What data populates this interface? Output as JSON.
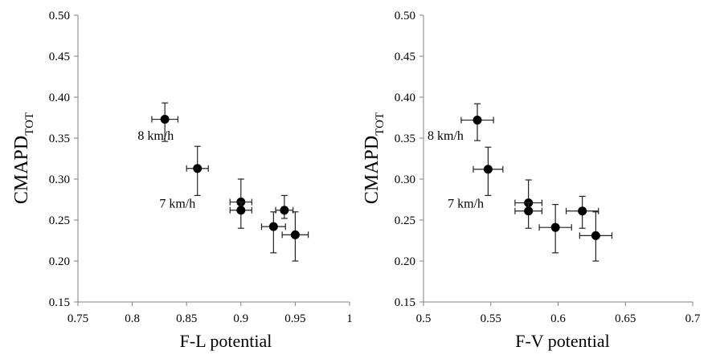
{
  "chart_data": [
    {
      "type": "scatter",
      "xlabel": "F-L potential",
      "ylabel": "CMAPD",
      "ylabel_sub": "TOT",
      "xlim": [
        0.75,
        1
      ],
      "ylim": [
        0.15,
        0.5
      ],
      "x_ticks": [
        0.75,
        0.8,
        0.85,
        0.9,
        0.95,
        1
      ],
      "x_tick_labels": [
        "0.75",
        "0.8",
        "0.85",
        "0.9",
        "0.95",
        "1"
      ],
      "y_ticks": [
        0.15,
        0.2,
        0.25,
        0.3,
        0.35,
        0.4,
        0.45,
        0.5
      ],
      "y_tick_labels": [
        "0.15",
        "0.20",
        "0.25",
        "0.30",
        "0.35",
        "0.40",
        "0.45",
        "0.50"
      ],
      "grid": false,
      "points": [
        {
          "x": 0.83,
          "y": 0.373,
          "xerr": 0.012,
          "yerr_low": 0.027,
          "yerr_high": 0.02
        },
        {
          "x": 0.86,
          "y": 0.313,
          "xerr": 0.01,
          "yerr_low": 0.033,
          "yerr_high": 0.027
        },
        {
          "x": 0.9,
          "y": 0.272,
          "xerr": 0.01,
          "yerr_low": 0.01,
          "yerr_high": 0.028
        },
        {
          "x": 0.9,
          "y": 0.262,
          "xerr": 0.01,
          "yerr_low": 0.022,
          "yerr_high": 0.01
        },
        {
          "x": 0.94,
          "y": 0.262,
          "xerr": 0.008,
          "yerr_low": 0.01,
          "yerr_high": 0.018
        },
        {
          "x": 0.93,
          "y": 0.242,
          "xerr": 0.011,
          "yerr_low": 0.032,
          "yerr_high": 0.018
        },
        {
          "x": 0.95,
          "y": 0.232,
          "xerr": 0.012,
          "yerr_low": 0.032,
          "yerr_high": 0.028
        }
      ],
      "annotations": [
        {
          "text": "8 km/h",
          "x": 0.805,
          "y": 0.353
        },
        {
          "text": "7 km/h",
          "x": 0.825,
          "y": 0.27
        }
      ]
    },
    {
      "type": "scatter",
      "xlabel": "F-V potential",
      "ylabel": "CMAPD",
      "ylabel_sub": "TOT",
      "xlim": [
        0.5,
        0.7
      ],
      "ylim": [
        0.15,
        0.5
      ],
      "x_ticks": [
        0.5,
        0.55,
        0.6,
        0.65,
        0.7
      ],
      "x_tick_labels": [
        "0.5",
        "0.55",
        "0.6",
        "0.65",
        "0.7"
      ],
      "y_ticks": [
        0.15,
        0.2,
        0.25,
        0.3,
        0.35,
        0.4,
        0.45,
        0.5
      ],
      "y_tick_labels": [
        "0.15",
        "0.20",
        "0.25",
        "0.30",
        "0.35",
        "0.40",
        "0.45",
        "0.50"
      ],
      "grid": false,
      "points": [
        {
          "x": 0.54,
          "y": 0.372,
          "xerr": 0.012,
          "yerr_low": 0.025,
          "yerr_high": 0.02
        },
        {
          "x": 0.548,
          "y": 0.312,
          "xerr": 0.011,
          "yerr_low": 0.032,
          "yerr_high": 0.027
        },
        {
          "x": 0.578,
          "y": 0.271,
          "xerr": 0.01,
          "yerr_low": 0.011,
          "yerr_high": 0.028
        },
        {
          "x": 0.578,
          "y": 0.261,
          "xerr": 0.01,
          "yerr_low": 0.021,
          "yerr_high": 0.01
        },
        {
          "x": 0.618,
          "y": 0.261,
          "xerr": 0.012,
          "yerr_low": 0.021,
          "yerr_high": 0.018
        },
        {
          "x": 0.598,
          "y": 0.241,
          "xerr": 0.012,
          "yerr_low": 0.031,
          "yerr_high": 0.028
        },
        {
          "x": 0.628,
          "y": 0.231,
          "xerr": 0.012,
          "yerr_low": 0.031,
          "yerr_high": 0.029
        }
      ],
      "annotations": [
        {
          "text": "8 km/h",
          "x": 0.503,
          "y": 0.353
        },
        {
          "text": "7 km/h",
          "x": 0.518,
          "y": 0.27
        }
      ]
    }
  ]
}
